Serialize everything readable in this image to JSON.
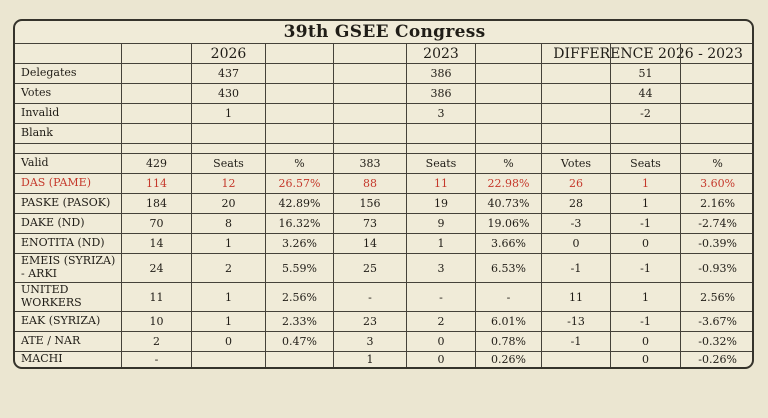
{
  "colors": {
    "page_background": "#ebe6d1",
    "cell_background": "#f0ebd8",
    "border": "#45423a",
    "text": "#201d17",
    "accent_red": "#c5392c"
  },
  "chart_data": {
    "type": "table",
    "title": "39th GSEE Congress",
    "year_headers": {
      "y2026": "2026",
      "y2023": "2023",
      "difference": "DIFFERENCE 2026 - 2023"
    },
    "rows": [
      {
        "kind": "data",
        "red": false,
        "cells": [
          "Delegates",
          "",
          "437",
          "",
          "",
          "386",
          "",
          "",
          "51",
          ""
        ]
      },
      {
        "kind": "data",
        "red": false,
        "cells": [
          "Votes",
          "",
          "430",
          "",
          "",
          "386",
          "",
          "",
          "44",
          ""
        ]
      },
      {
        "kind": "data",
        "red": false,
        "cells": [
          "Invalid",
          "",
          "1",
          "",
          "",
          "3",
          "",
          "",
          "-2",
          ""
        ]
      },
      {
        "kind": "data",
        "red": false,
        "cells": [
          "Blank",
          "",
          "",
          "",
          "",
          "",
          "",
          "",
          "",
          ""
        ]
      },
      {
        "kind": "spacer",
        "red": false,
        "cells": [
          "",
          "",
          "",
          "",
          "",
          "",
          "",
          "",
          "",
          ""
        ]
      },
      {
        "kind": "data",
        "red": false,
        "cells": [
          "Valid",
          "429",
          "Seats",
          "%",
          "383",
          "Seats",
          "%",
          "Votes",
          "Seats",
          "%"
        ]
      },
      {
        "kind": "data",
        "red": true,
        "cells": [
          "DAS (PAME)",
          "114",
          "12",
          "26.57%",
          "88",
          "11",
          "22.98%",
          "26",
          "1",
          "3.60%"
        ]
      },
      {
        "kind": "data",
        "red": false,
        "cells": [
          "PASKE (PASOK)",
          "184",
          "20",
          "42.89%",
          "156",
          "19",
          "40.73%",
          "28",
          "1",
          "2.16%"
        ]
      },
      {
        "kind": "data",
        "red": false,
        "cells": [
          "DAKE (ND)",
          "70",
          "8",
          "16.32%",
          "73",
          "9",
          "19.06%",
          "-3",
          "-1",
          "-2.74%"
        ]
      },
      {
        "kind": "data",
        "red": false,
        "cells": [
          "ENOTITA (ND)",
          "14",
          "1",
          "3.26%",
          "14",
          "1",
          "3.66%",
          "0",
          "0",
          "-0.39%"
        ]
      },
      {
        "kind": "tall",
        "red": false,
        "cells": [
          "EMEIS (SYRIZA)\n- ARKI",
          "24",
          "2",
          "5.59%",
          "25",
          "3",
          "6.53%",
          "-1",
          "-1",
          "-0.93%"
        ]
      },
      {
        "kind": "tall",
        "red": false,
        "cells": [
          "UNITED\nWORKERS",
          "11",
          "1",
          "2.56%",
          "-",
          "-",
          "-",
          "11",
          "1",
          "2.56%"
        ]
      },
      {
        "kind": "data",
        "red": false,
        "cells": [
          "EAK (SYRIZA)",
          "10",
          "1",
          "2.33%",
          "23",
          "2",
          "6.01%",
          "-13",
          "-1",
          "-3.67%"
        ]
      },
      {
        "kind": "data",
        "red": false,
        "cells": [
          "ATE / NAR",
          "2",
          "0",
          "0.47%",
          "3",
          "0",
          "0.78%",
          "-1",
          "0",
          "-0.32%"
        ]
      },
      {
        "kind": "short",
        "red": false,
        "cells": [
          "MACHI",
          "-",
          "",
          "",
          "1",
          "0",
          "0.26%",
          "",
          "0",
          "-0.26%"
        ]
      }
    ]
  }
}
